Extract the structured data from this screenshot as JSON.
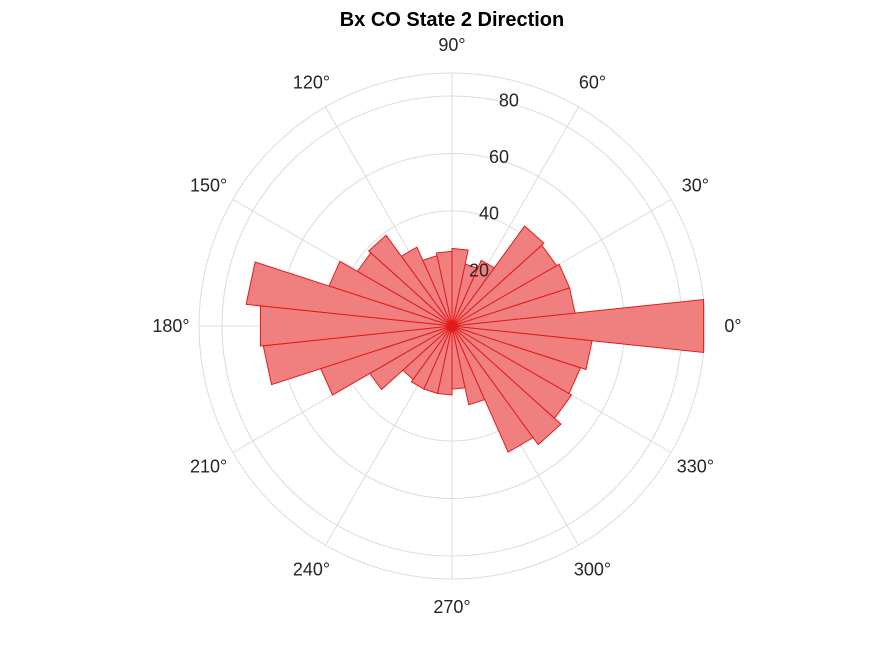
{
  "chart_data": {
    "type": "polar-histogram",
    "title": "Bx  CO State 2 Direction",
    "theta_ticks": [
      0,
      30,
      60,
      90,
      120,
      150,
      180,
      210,
      240,
      270,
      300,
      330
    ],
    "theta_tick_labels": [
      "0°",
      "30°",
      "60°",
      "90°",
      "120°",
      "150°",
      "180°",
      "210°",
      "240°",
      "270°",
      "300°",
      "330°"
    ],
    "r_ticks": [
      20,
      40,
      60,
      80
    ],
    "r_tick_labels": [
      "20",
      "40",
      "60",
      "80"
    ],
    "r_lim": [
      0,
      88
    ],
    "r_tick_angle_deg": 80,
    "bin_width_deg": 12,
    "bin_centers_deg": [
      0,
      12,
      24,
      36,
      48,
      60,
      72,
      84,
      96,
      108,
      120,
      132,
      144,
      156,
      168,
      180,
      192,
      204,
      216,
      228,
      240,
      252,
      264,
      276,
      288,
      300,
      312,
      324,
      336,
      348
    ],
    "counts": [
      88,
      43,
      43,
      42,
      43,
      25,
      22,
      27,
      26,
      25,
      30,
      39,
      38,
      45,
      72,
      67,
      66,
      48,
      33,
      23,
      24,
      24,
      24,
      22,
      28,
      48,
      51,
      48,
      47,
      49
    ],
    "face_color": "#f08080",
    "edge_color": "#e31a1c",
    "grid": true
  }
}
